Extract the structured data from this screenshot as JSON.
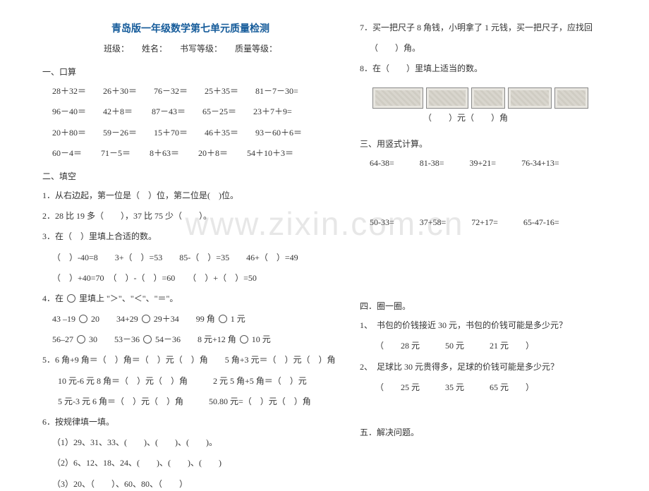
{
  "title": "青岛版一年级数学第七单元质量检测",
  "meta": "班级：　　姓名：　　书写等级：　　质量等级：",
  "left": {
    "s1_head": "一、口算",
    "s1_rows": [
      "28＋32＝　　26＋30＝　　76－32＝　　25＋35＝　　81－7－30=",
      "96－40＝　　42＋8＝　　 87－43＝　　65－25＝　　23＋7＋9=",
      "20＋80＝　　59－26＝　　15＋70＝　　46＋35＝　　93－60＋6＝",
      "60－4＝　　 71－5＝　　 8＋63＝　　 20＋8＝　　 54＋10＋3＝"
    ],
    "s2_head": "二、填空",
    "q1": "1．从右边起，第一位是（　）位，第二位是(　)位。",
    "q2": "2．28 比 19 多（　　），37 比 75 少（　　）。",
    "q3": "3．在（　）里填上合适的数。",
    "q3a": "（　）-40=8　　3+（　）=53　　85-（　）=35　　46+（　）=49",
    "q3b": "（　）+40=70　（　）-（　）=60　　（　）+（　）=50",
    "q4_pre": "4．在",
    "q4_post": "里填上 \"＞\"、\"＜\"、\"＝\"。",
    "q4a_1": "43 –19",
    "q4a_2": "20　　34+29",
    "q4a_3": "29＋34　　99 角",
    "q4a_4": "1 元",
    "q4b_1": "56–27",
    "q4b_2": "30　　53－36",
    "q4b_3": "54－36　　8 元+12 角",
    "q4b_4": "10 元",
    "q5": "5．6 角+9 角＝（　）角＝（　）元（　）角　　5 角+3 元＝（　）元（　）角",
    "q5a": "10 元-6 元 8 角＝（　）元（　）角　　　2 元 5 角+5 角＝（　）元",
    "q5b": "5 元-3 元 6 角＝（　）元（　）角　　　50.80 元=（　）元（　）角",
    "q6": "6．按规律填一填。",
    "q6a": "（1）29、31、33、(　　)、(　　)、(　　)。",
    "q6b": "（2）6、12、18、24、(　　)、(　　)、(　　)",
    "q6c": "（3）20、（　　）、60、80、（　　）"
  },
  "right": {
    "q7a": "7．买一把尺子 8 角钱，小明拿了 1 元钱，买一把尺子，应找回",
    "q7b": "（　　）角。",
    "q8": "8．在（　　）里填上适当的数。",
    "money_caption": "（　　）元（　　）角",
    "s3_head": "三、用竖式计算。",
    "s3_row1": "64-38=　　　81-38=　　　39+21=　　　76-34+13=",
    "s3_row2": "50-33=　　　37+58=　　　72+17=　　　65-47-16=",
    "s4_head": "四．圈一圈。",
    "s4_q1": "1、　书包的价钱接近 30 元，书包的价钱可能是多少元？",
    "s4_q1opt": "（　　28 元　　　50 元　　　21 元　　）",
    "s4_q2": "2、　足球比 30 元贵得多，足球的价钱可能是多少元？",
    "s4_q2opt": "（　　25 元　　　35 元　　　65 元　　）",
    "s5_head": "五．解决问题。"
  },
  "watermark": "www.zixin.com.cn",
  "note_widths": [
    72,
    60,
    48,
    62,
    48
  ]
}
